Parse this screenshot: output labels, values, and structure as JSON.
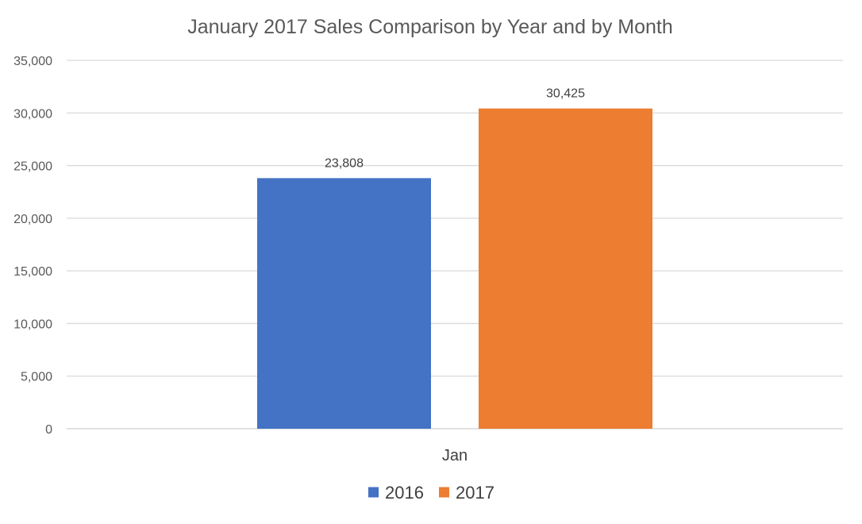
{
  "chart_data": {
    "type": "bar",
    "title": "January 2017 Sales Comparison by Year and by Month",
    "categories": [
      "Jan"
    ],
    "series": [
      {
        "name": "2016",
        "values": [
          23808
        ],
        "labels": [
          "23,808"
        ],
        "color": "#4472C4"
      },
      {
        "name": "2017",
        "values": [
          30425
        ],
        "labels": [
          "30,425"
        ],
        "color": "#ED7D31"
      }
    ],
    "ylim": [
      0,
      35000
    ],
    "yticks": [
      0,
      5000,
      10000,
      15000,
      20000,
      25000,
      30000,
      35000
    ],
    "ytick_labels": [
      "0",
      "5,000",
      "10,000",
      "15,000",
      "20,000",
      "25,000",
      "30,000",
      "35,000"
    ],
    "xlabel": "",
    "ylabel": "",
    "grid": true,
    "legend_position": "bottom"
  }
}
